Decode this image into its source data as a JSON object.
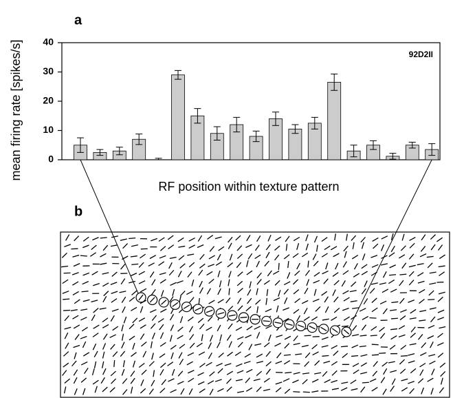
{
  "chart_data": {
    "type": "bar",
    "panel_label": "a",
    "annotation": "92D2II",
    "y_label": "mean firing rate [spikes/s]",
    "x_label": "RF position within texture pattern",
    "categories": [
      null,
      null,
      null,
      null,
      null,
      null,
      null,
      null,
      null,
      null,
      null,
      null,
      null,
      null,
      null,
      null,
      null,
      null,
      null
    ],
    "values": [
      5,
      2.5,
      3,
      7,
      0,
      29,
      15,
      9,
      12,
      8,
      14,
      10.5,
      12.5,
      26.5,
      3,
      5,
      1.2,
      5,
      3.5
    ],
    "errors": [
      2.5,
      1,
      1.3,
      1.8,
      0.5,
      1.5,
      2.5,
      2.3,
      2.5,
      1.8,
      2.3,
      1.5,
      2,
      2.8,
      2,
      1.5,
      1,
      1,
      2
    ],
    "color": "#cccccc",
    "ylim": [
      0,
      40
    ],
    "yticks": [
      0,
      10,
      20,
      30,
      40
    ]
  },
  "texture_panel": {
    "label": "b"
  }
}
